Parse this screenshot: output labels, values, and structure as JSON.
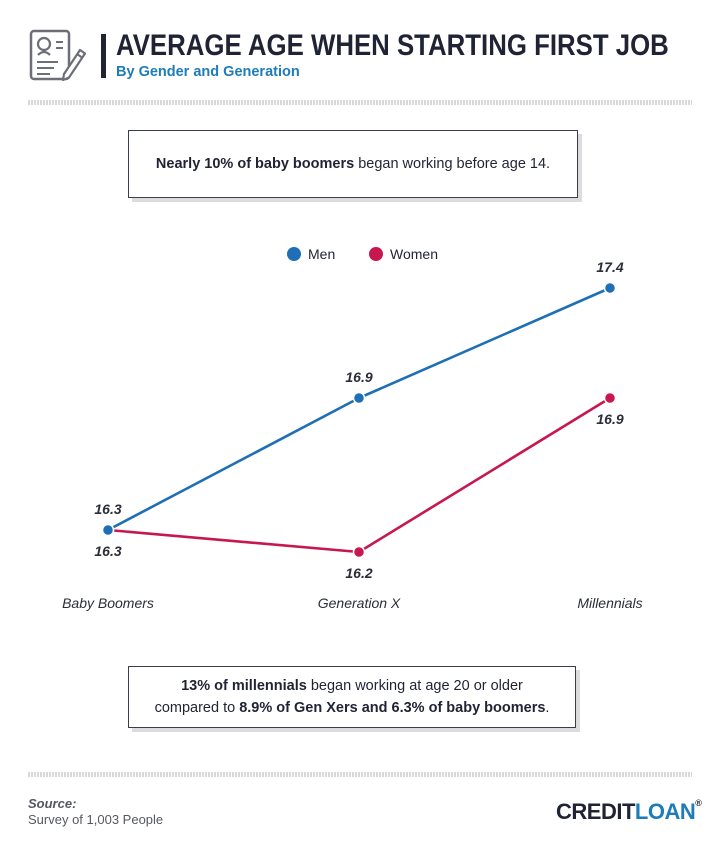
{
  "header": {
    "title": "AVERAGE AGE WHEN STARTING FIRST JOB",
    "subtitle": "By Gender and Generation",
    "icon": "resume-document-pencil-icon"
  },
  "callout_top": {
    "bold": "Nearly 10% of baby boomers",
    "rest": " began working before age 14."
  },
  "callout_bottom": {
    "line1_bold": "13% of millennials",
    "line1_rest": " began working at age 20 or older",
    "line2_pre": "compared to ",
    "line2_bold": "8.9% of Gen Xers and 6.3% of baby boomers",
    "line2_post": "."
  },
  "chart_data": {
    "type": "line",
    "categories": [
      "Baby Boomers",
      "Generation X",
      "Millennials"
    ],
    "series": [
      {
        "name": "Men",
        "color": "#1e6fb5",
        "values": [
          16.3,
          16.9,
          17.4
        ]
      },
      {
        "name": "Women",
        "color": "#c8174f",
        "values": [
          16.3,
          16.2,
          16.9
        ]
      }
    ],
    "legend_position": "top-center",
    "grid": false,
    "value_labels": true
  },
  "footer": {
    "source_label": "Source:",
    "source_text": "Survey of 1,003 People",
    "brand_part1": "CREDIT",
    "brand_part2": "LOAN",
    "brand_mark": "®"
  }
}
